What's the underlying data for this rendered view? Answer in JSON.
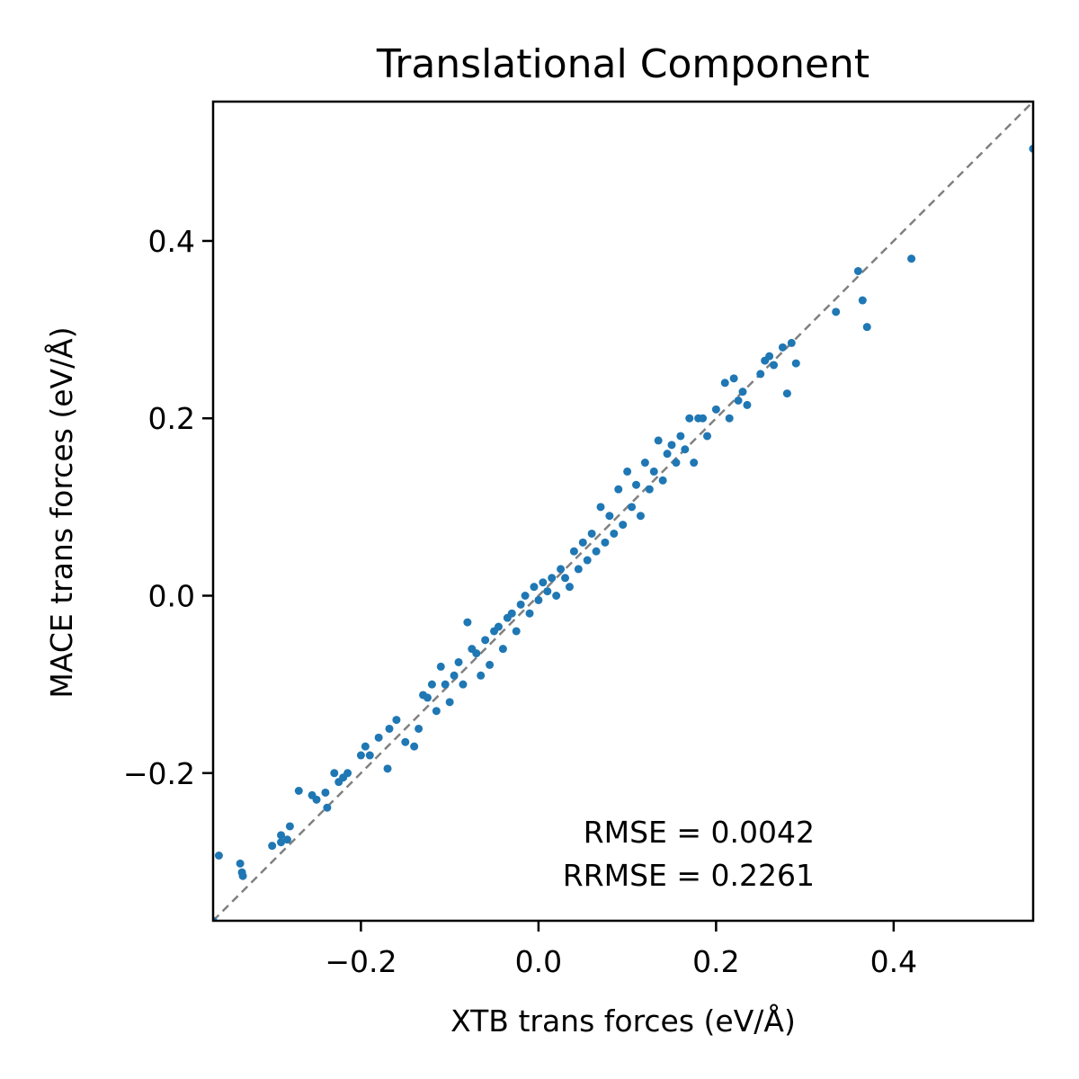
{
  "chart_data": {
    "type": "scatter",
    "title": "Translational Component",
    "xlabel": "XTB trans forces (eV/Å)",
    "ylabel": "MACE trans forces (eV/Å)",
    "xlim": [
      -0.3665,
      0.5571
    ],
    "ylim": [
      -0.3665,
      0.5571
    ],
    "xticks": [
      -0.2,
      0.0,
      0.2,
      0.4
    ],
    "yticks": [
      -0.2,
      0.0,
      0.2,
      0.4
    ],
    "xtick_labels": [
      "−0.2",
      "0.0",
      "0.2",
      "0.4"
    ],
    "ytick_labels": [
      "−0.2",
      "0.0",
      "0.2",
      "0.4"
    ],
    "reference_line": "y = x",
    "grid": false,
    "legend": "none",
    "annotations": [
      "RMSE = 0.0042",
      "RRMSE = 0.2261"
    ],
    "colors": {
      "points": "#1f77b4",
      "reference_line": "#808080"
    },
    "series": [
      {
        "points": [
          [
            -0.3665,
            -0.3665
          ],
          [
            -0.36,
            -0.293
          ],
          [
            -0.336,
            -0.302
          ],
          [
            -0.334,
            -0.312
          ],
          [
            -0.333,
            -0.316
          ],
          [
            -0.3,
            -0.282
          ],
          [
            -0.29,
            -0.278
          ],
          [
            -0.29,
            -0.27
          ],
          [
            -0.283,
            -0.275
          ],
          [
            -0.28,
            -0.26
          ],
          [
            -0.27,
            -0.22
          ],
          [
            -0.255,
            -0.225
          ],
          [
            -0.25,
            -0.23
          ],
          [
            -0.24,
            -0.222
          ],
          [
            -0.238,
            -0.239
          ],
          [
            -0.23,
            -0.2
          ],
          [
            -0.225,
            -0.21
          ],
          [
            -0.22,
            -0.205
          ],
          [
            -0.215,
            -0.2
          ],
          [
            -0.2,
            -0.18
          ],
          [
            -0.195,
            -0.17
          ],
          [
            -0.19,
            -0.18
          ],
          [
            -0.18,
            -0.16
          ],
          [
            -0.17,
            -0.195
          ],
          [
            -0.168,
            -0.15
          ],
          [
            -0.16,
            -0.14
          ],
          [
            -0.15,
            -0.165
          ],
          [
            -0.14,
            -0.17
          ],
          [
            -0.135,
            -0.15
          ],
          [
            -0.13,
            -0.112
          ],
          [
            -0.125,
            -0.115
          ],
          [
            -0.12,
            -0.1
          ],
          [
            -0.115,
            -0.13
          ],
          [
            -0.11,
            -0.08
          ],
          [
            -0.105,
            -0.1
          ],
          [
            -0.1,
            -0.12
          ],
          [
            -0.095,
            -0.09
          ],
          [
            -0.09,
            -0.075
          ],
          [
            -0.085,
            -0.1
          ],
          [
            -0.08,
            -0.03
          ],
          [
            -0.075,
            -0.06
          ],
          [
            -0.07,
            -0.065
          ],
          [
            -0.065,
            -0.09
          ],
          [
            -0.06,
            -0.05
          ],
          [
            -0.055,
            -0.078
          ],
          [
            -0.05,
            -0.04
          ],
          [
            -0.045,
            -0.035
          ],
          [
            -0.04,
            -0.06
          ],
          [
            -0.035,
            -0.025
          ],
          [
            -0.03,
            -0.02
          ],
          [
            -0.025,
            -0.04
          ],
          [
            -0.02,
            -0.01
          ],
          [
            -0.015,
            0.0
          ],
          [
            -0.01,
            -0.02
          ],
          [
            -0.005,
            0.01
          ],
          [
            0.0,
            -0.005
          ],
          [
            0.005,
            0.015
          ],
          [
            0.01,
            0.005
          ],
          [
            0.015,
            0.02
          ],
          [
            0.02,
            0.0
          ],
          [
            0.025,
            0.03
          ],
          [
            0.03,
            0.02
          ],
          [
            0.035,
            0.01
          ],
          [
            0.04,
            0.05
          ],
          [
            0.045,
            0.03
          ],
          [
            0.05,
            0.06
          ],
          [
            0.055,
            0.04
          ],
          [
            0.06,
            0.07
          ],
          [
            0.065,
            0.05
          ],
          [
            0.07,
            0.1
          ],
          [
            0.075,
            0.06
          ],
          [
            0.08,
            0.09
          ],
          [
            0.085,
            0.07
          ],
          [
            0.09,
            0.12
          ],
          [
            0.095,
            0.08
          ],
          [
            0.1,
            0.14
          ],
          [
            0.105,
            0.1
          ],
          [
            0.11,
            0.125
          ],
          [
            0.115,
            0.09
          ],
          [
            0.12,
            0.15
          ],
          [
            0.125,
            0.12
          ],
          [
            0.13,
            0.14
          ],
          [
            0.135,
            0.175
          ],
          [
            0.14,
            0.13
          ],
          [
            0.145,
            0.16
          ],
          [
            0.15,
            0.17
          ],
          [
            0.155,
            0.15
          ],
          [
            0.16,
            0.18
          ],
          [
            0.165,
            0.165
          ],
          [
            0.17,
            0.2
          ],
          [
            0.175,
            0.15
          ],
          [
            0.18,
            0.2
          ],
          [
            0.185,
            0.2
          ],
          [
            0.19,
            0.18
          ],
          [
            0.2,
            0.21
          ],
          [
            0.21,
            0.24
          ],
          [
            0.215,
            0.2
          ],
          [
            0.22,
            0.245
          ],
          [
            0.225,
            0.22
          ],
          [
            0.23,
            0.23
          ],
          [
            0.235,
            0.215
          ],
          [
            0.25,
            0.25
          ],
          [
            0.255,
            0.265
          ],
          [
            0.26,
            0.27
          ],
          [
            0.265,
            0.26
          ],
          [
            0.275,
            0.28
          ],
          [
            0.28,
            0.228
          ],
          [
            0.285,
            0.285
          ],
          [
            0.29,
            0.262
          ],
          [
            0.335,
            0.32
          ],
          [
            0.36,
            0.366
          ],
          [
            0.365,
            0.333
          ],
          [
            0.37,
            0.303
          ],
          [
            0.42,
            0.38
          ],
          [
            0.557,
            0.504
          ]
        ]
      }
    ]
  }
}
